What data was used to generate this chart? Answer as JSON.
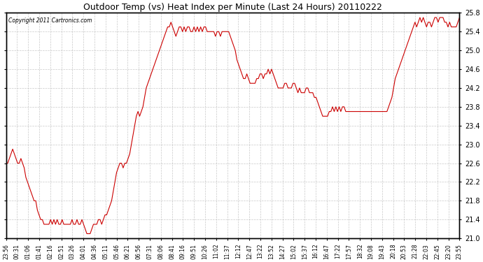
{
  "title": "Outdoor Temp (vs) Heat Index per Minute (Last 24 Hours) 20110222",
  "copyright": "Copyright 2011 Cartronics.com",
  "ylim": [
    21.0,
    25.8
  ],
  "yticks": [
    21.0,
    21.4,
    21.8,
    22.2,
    22.6,
    23.0,
    23.4,
    23.8,
    24.2,
    24.6,
    25.0,
    25.4,
    25.8
  ],
  "line_color": "#cc0000",
  "bg_color": "#ffffff",
  "grid_color": "#bbbbbb",
  "xtick_labels": [
    "23:56",
    "00:31",
    "01:06",
    "01:41",
    "02:16",
    "02:51",
    "03:26",
    "04:01",
    "04:36",
    "05:11",
    "05:46",
    "06:21",
    "06:56",
    "07:31",
    "08:06",
    "08:41",
    "09:16",
    "09:51",
    "10:26",
    "11:02",
    "11:37",
    "12:12",
    "12:47",
    "13:22",
    "13:52",
    "14:27",
    "15:02",
    "15:37",
    "16:12",
    "16:47",
    "17:22",
    "17:57",
    "18:32",
    "19:08",
    "19:43",
    "20:18",
    "20:53",
    "21:28",
    "22:03",
    "22:45",
    "23:20",
    "23:55"
  ],
  "data_y": [
    22.6,
    22.6,
    22.7,
    22.8,
    22.9,
    22.8,
    22.7,
    22.6,
    22.6,
    22.7,
    22.6,
    22.5,
    22.3,
    22.2,
    22.1,
    22.0,
    21.9,
    21.8,
    21.8,
    21.6,
    21.5,
    21.4,
    21.4,
    21.3,
    21.3,
    21.3,
    21.3,
    21.4,
    21.3,
    21.4,
    21.3,
    21.4,
    21.3,
    21.3,
    21.4,
    21.3,
    21.3,
    21.3,
    21.3,
    21.3,
    21.4,
    21.3,
    21.3,
    21.4,
    21.3,
    21.3,
    21.4,
    21.3,
    21.2,
    21.1,
    21.1,
    21.1,
    21.2,
    21.3,
    21.3,
    21.3,
    21.4,
    21.4,
    21.3,
    21.4,
    21.5,
    21.5,
    21.6,
    21.7,
    21.8,
    22.0,
    22.2,
    22.4,
    22.5,
    22.6,
    22.6,
    22.5,
    22.6,
    22.6,
    22.7,
    22.8,
    23.0,
    23.2,
    23.4,
    23.6,
    23.7,
    23.6,
    23.7,
    23.8,
    24.0,
    24.2,
    24.3,
    24.4,
    24.5,
    24.6,
    24.7,
    24.8,
    24.9,
    25.0,
    25.1,
    25.2,
    25.3,
    25.4,
    25.5,
    25.5,
    25.6,
    25.5,
    25.4,
    25.3,
    25.4,
    25.5,
    25.5,
    25.4,
    25.5,
    25.4,
    25.5,
    25.5,
    25.4,
    25.4,
    25.5,
    25.4,
    25.5,
    25.4,
    25.5,
    25.4,
    25.5,
    25.5,
    25.4,
    25.4,
    25.4,
    25.4,
    25.4,
    25.3,
    25.4,
    25.4,
    25.3,
    25.4,
    25.4,
    25.4,
    25.4,
    25.4,
    25.3,
    25.2,
    25.1,
    25.0,
    24.8,
    24.7,
    24.6,
    24.5,
    24.4,
    24.4,
    24.5,
    24.4,
    24.3,
    24.3,
    24.3,
    24.3,
    24.4,
    24.4,
    24.5,
    24.5,
    24.4,
    24.5,
    24.5,
    24.6,
    24.5,
    24.6,
    24.5,
    24.4,
    24.3,
    24.2,
    24.2,
    24.2,
    24.2,
    24.3,
    24.3,
    24.2,
    24.2,
    24.2,
    24.3,
    24.3,
    24.2,
    24.1,
    24.2,
    24.1,
    24.1,
    24.1,
    24.2,
    24.2,
    24.1,
    24.1,
    24.1,
    24.0,
    24.0,
    23.9,
    23.8,
    23.7,
    23.6,
    23.6,
    23.6,
    23.6,
    23.7,
    23.7,
    23.8,
    23.7,
    23.8,
    23.7,
    23.8,
    23.7,
    23.8,
    23.8,
    23.7,
    23.7,
    23.7,
    23.7,
    23.7,
    23.7,
    23.7,
    23.7,
    23.7,
    23.7,
    23.7,
    23.7,
    23.7,
    23.7,
    23.7,
    23.7,
    23.7,
    23.7,
    23.7,
    23.7,
    23.7,
    23.7,
    23.7,
    23.7,
    23.7,
    23.7,
    23.8,
    23.9,
    24.0,
    24.2,
    24.4,
    24.5,
    24.6,
    24.7,
    24.8,
    24.9,
    25.0,
    25.1,
    25.2,
    25.3,
    25.4,
    25.5,
    25.6,
    25.5,
    25.6,
    25.7,
    25.6,
    25.7,
    25.6,
    25.5,
    25.6,
    25.6,
    25.5,
    25.6,
    25.7,
    25.7,
    25.6,
    25.7,
    25.7,
    25.7,
    25.6,
    25.6,
    25.5,
    25.6,
    25.5,
    25.5,
    25.5,
    25.5,
    25.6,
    25.7
  ]
}
